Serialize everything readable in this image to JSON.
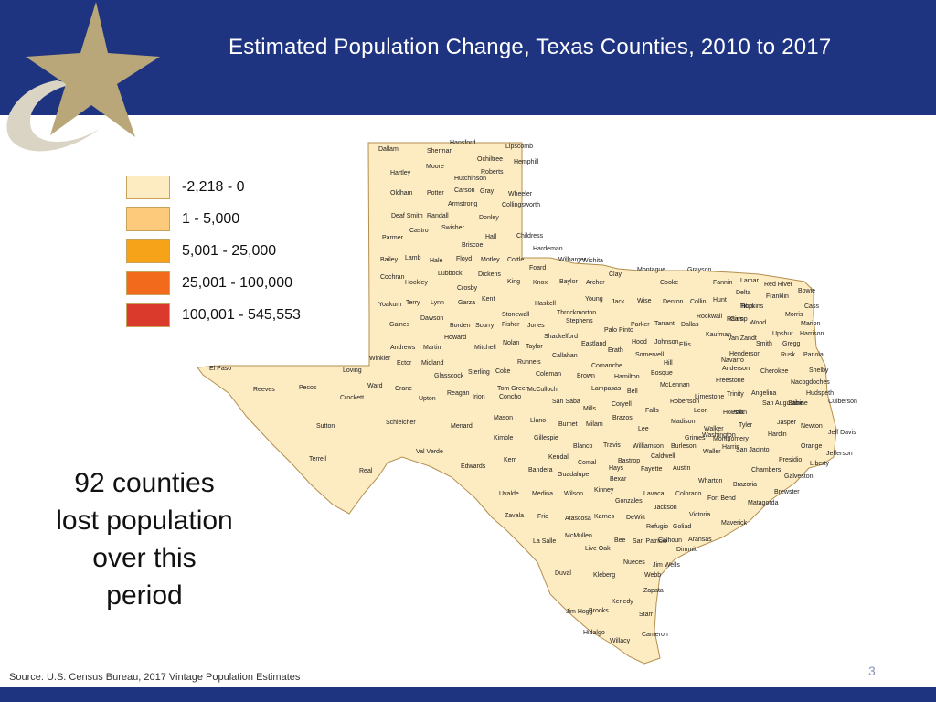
{
  "header": {
    "title": "Estimated Population Change, Texas Counties, 2010 to 2017"
  },
  "colors": {
    "header_bg": "#1f3480",
    "bin_1": "#fdebc2",
    "bin_2": "#fdc97a",
    "bin_3": "#f7a319",
    "bin_4": "#f26a1b",
    "bin_5": "#d93a2b",
    "logo_star": "#b9a77a"
  },
  "legend": {
    "items": [
      {
        "label": "-2,218 - 0",
        "color": "#fdebc2"
      },
      {
        "label": "1 - 5,000",
        "color": "#fdc97a"
      },
      {
        "label": "5,001 - 25,000",
        "color": "#f7a319"
      },
      {
        "label": "25,001 - 100,000",
        "color": "#f26a1b"
      },
      {
        "label": "100,001 - 545,553",
        "color": "#d93a2b"
      }
    ]
  },
  "callout": {
    "line1": "92 counties",
    "line2": "lost population",
    "line3": "over this",
    "line4": "period"
  },
  "counties": [
    "Dallam",
    "Sherman",
    "Hansford",
    "Ochiltree",
    "Lipscomb",
    "Hartley",
    "Moore",
    "Hutchinson",
    "Roberts",
    "Hemphill",
    "Oldham",
    "Potter",
    "Carson",
    "Gray",
    "Wheeler",
    "Deaf Smith",
    "Randall",
    "Armstrong",
    "Donley",
    "Collingsworth",
    "Parmer",
    "Castro",
    "Swisher",
    "Briscoe",
    "Hall",
    "Childress",
    "Bailey",
    "Lamb",
    "Hale",
    "Floyd",
    "Motley",
    "Cottle",
    "Hardeman",
    "Wilbarger",
    "Wichita",
    "Foard",
    "Cochran",
    "Hockley",
    "Lubbock",
    "Crosby",
    "Dickens",
    "King",
    "Knox",
    "Baylor",
    "Archer",
    "Clay",
    "Montague",
    "Cooke",
    "Grayson",
    "Fannin",
    "Lamar",
    "Red River",
    "Bowie",
    "Delta",
    "Franklin",
    "Titus",
    "Morris",
    "Cass",
    "Yoakum",
    "Terry",
    "Lynn",
    "Garza",
    "Kent",
    "Stonewall",
    "Haskell",
    "Throckmorton",
    "Young",
    "Jack",
    "Wise",
    "Denton",
    "Collin",
    "Hunt",
    "Hopkins",
    "Rockwall",
    "Camp",
    "Marion",
    "Gaines",
    "Dawson",
    "Borden",
    "Scurry",
    "Fisher",
    "Jones",
    "Shackelford",
    "Stephens",
    "Palo Pinto",
    "Parker",
    "Tarrant",
    "Dallas",
    "Kaufman",
    "Rains",
    "Wood",
    "Upshur",
    "Harrison",
    "Van Zandt",
    "Smith",
    "Gregg",
    "Rusk",
    "Panola",
    "Andrews",
    "Martin",
    "Howard",
    "Mitchell",
    "Nolan",
    "Taylor",
    "Callahan",
    "Eastland",
    "Erath",
    "Hood",
    "Somervell",
    "Johnson",
    "Ellis",
    "Henderson",
    "Navarro",
    "Hill",
    "Winkler",
    "Ector",
    "Midland",
    "Glasscock",
    "Sterling",
    "Coke",
    "Runnels",
    "Coleman",
    "Brown",
    "Comanche",
    "Hamilton",
    "Bosque",
    "McLennan",
    "Limestone",
    "Freestone",
    "Anderson",
    "Cherokee",
    "Nacogdoches",
    "Shelby",
    "El Paso",
    "Loving",
    "Ward",
    "Crane",
    "Upton",
    "Reagan",
    "Irion",
    "Tom Green",
    "Concho",
    "McCulloch",
    "San Saba",
    "Mills",
    "Lampasas",
    "Coryell",
    "Bell",
    "Falls",
    "Robertson",
    "Leon",
    "Houston",
    "Trinity",
    "Angelina",
    "San Augustine",
    "Sabine",
    "Hudspeth",
    "Culberson",
    "Reeves",
    "Pecos",
    "Crockett",
    "Schleicher",
    "Menard",
    "Mason",
    "Llano",
    "Burnet",
    "Milam",
    "Brazos",
    "Madison",
    "Walker",
    "Polk",
    "Tyler",
    "Jasper",
    "Newton",
    "Jeff Davis",
    "Sutton",
    "Kimble",
    "Gillespie",
    "Blanco",
    "Travis",
    "Williamson",
    "Lee",
    "Burleson",
    "Grimes",
    "Montgomery",
    "San Jacinto",
    "Hardin",
    "Orange",
    "Jefferson",
    "Liberty",
    "Presidio",
    "Terrell",
    "Val Verde",
    "Edwards",
    "Kerr",
    "Kendall",
    "Comal",
    "Hays",
    "Bastrop",
    "Caldwell",
    "Fayette",
    "Austin",
    "Washington",
    "Waller",
    "Harris",
    "Chambers",
    "Galveston",
    "Brewster",
    "Real",
    "Bandera",
    "Guadalupe",
    "Bexar",
    "Kinney",
    "Uvalde",
    "Medina",
    "Wilson",
    "Gonzales",
    "Lavaca",
    "Colorado",
    "Wharton",
    "Fort Bend",
    "Brazoria",
    "Matagorda",
    "Maverick",
    "Zavala",
    "Frio",
    "Atascosa",
    "Karnes",
    "DeWitt",
    "Jackson",
    "Victoria",
    "Goliad",
    "Refugio",
    "Calhoun",
    "Aransas",
    "Dimmit",
    "La Salle",
    "McMullen",
    "Live Oak",
    "Bee",
    "San Patricio",
    "Jim Wells",
    "Nueces",
    "Webb",
    "Duval",
    "Kleberg",
    "Zapata",
    "Jim Hogg",
    "Brooks",
    "Kenedy",
    "Starr",
    "Hidalgo",
    "Willacy",
    "Cameron"
  ],
  "source": "Source: U.S. Census Bureau, 2017 Vintage Population Estimates",
  "page_number": "3"
}
